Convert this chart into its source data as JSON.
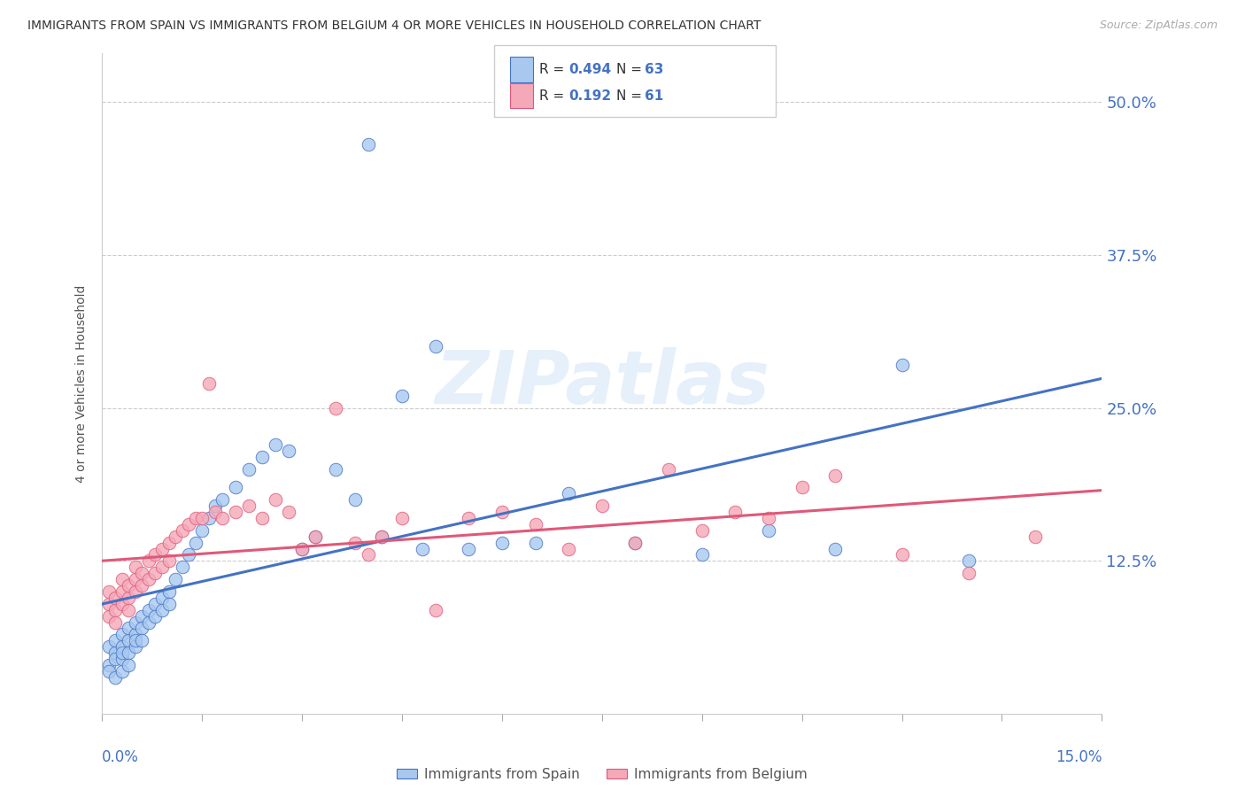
{
  "title": "IMMIGRANTS FROM SPAIN VS IMMIGRANTS FROM BELGIUM 4 OR MORE VEHICLES IN HOUSEHOLD CORRELATION CHART",
  "source": "Source: ZipAtlas.com",
  "ylabel": "4 or more Vehicles in Household",
  "yticks_labels": [
    "50.0%",
    "37.5%",
    "25.0%",
    "12.5%"
  ],
  "ytick_vals": [
    0.5,
    0.375,
    0.25,
    0.125
  ],
  "xlim": [
    0.0,
    0.15
  ],
  "ylim": [
    0.0,
    0.54
  ],
  "legend_label1": "Immigrants from Spain",
  "legend_label2": "Immigrants from Belgium",
  "R1": "0.494",
  "N1": "63",
  "R2": "0.192",
  "N2": "61",
  "color_spain": "#a8c8f0",
  "color_belgium": "#f4a8b8",
  "line_color_spain": "#4472c4",
  "line_color_belgium": "#e05878",
  "background_color": "#ffffff",
  "watermark_text": "ZIPatlas",
  "spain_x": [
    0.001,
    0.001,
    0.001,
    0.002,
    0.002,
    0.002,
    0.002,
    0.003,
    0.003,
    0.003,
    0.003,
    0.003,
    0.004,
    0.004,
    0.004,
    0.004,
    0.005,
    0.005,
    0.005,
    0.005,
    0.006,
    0.006,
    0.006,
    0.007,
    0.007,
    0.008,
    0.008,
    0.009,
    0.009,
    0.01,
    0.01,
    0.011,
    0.012,
    0.013,
    0.014,
    0.015,
    0.016,
    0.017,
    0.018,
    0.02,
    0.022,
    0.024,
    0.026,
    0.028,
    0.03,
    0.032,
    0.035,
    0.038,
    0.04,
    0.042,
    0.045,
    0.048,
    0.05,
    0.055,
    0.06,
    0.065,
    0.07,
    0.08,
    0.09,
    0.1,
    0.11,
    0.12,
    0.13
  ],
  "spain_y": [
    0.04,
    0.055,
    0.035,
    0.05,
    0.06,
    0.045,
    0.03,
    0.065,
    0.055,
    0.045,
    0.035,
    0.05,
    0.06,
    0.07,
    0.05,
    0.04,
    0.065,
    0.055,
    0.075,
    0.06,
    0.08,
    0.07,
    0.06,
    0.085,
    0.075,
    0.09,
    0.08,
    0.095,
    0.085,
    0.1,
    0.09,
    0.11,
    0.12,
    0.13,
    0.14,
    0.15,
    0.16,
    0.17,
    0.175,
    0.185,
    0.2,
    0.21,
    0.22,
    0.215,
    0.135,
    0.145,
    0.2,
    0.175,
    0.465,
    0.145,
    0.26,
    0.135,
    0.3,
    0.135,
    0.14,
    0.14,
    0.18,
    0.14,
    0.13,
    0.15,
    0.135,
    0.285,
    0.125
  ],
  "belgium_x": [
    0.001,
    0.001,
    0.001,
    0.002,
    0.002,
    0.002,
    0.003,
    0.003,
    0.003,
    0.004,
    0.004,
    0.004,
    0.005,
    0.005,
    0.005,
    0.006,
    0.006,
    0.007,
    0.007,
    0.008,
    0.008,
    0.009,
    0.009,
    0.01,
    0.01,
    0.011,
    0.012,
    0.013,
    0.014,
    0.015,
    0.016,
    0.017,
    0.018,
    0.02,
    0.022,
    0.024,
    0.026,
    0.028,
    0.03,
    0.032,
    0.035,
    0.038,
    0.04,
    0.042,
    0.045,
    0.05,
    0.055,
    0.06,
    0.065,
    0.07,
    0.075,
    0.08,
    0.085,
    0.09,
    0.095,
    0.1,
    0.105,
    0.11,
    0.12,
    0.13,
    0.14
  ],
  "belgium_y": [
    0.09,
    0.08,
    0.1,
    0.085,
    0.095,
    0.075,
    0.09,
    0.1,
    0.11,
    0.095,
    0.105,
    0.085,
    0.1,
    0.11,
    0.12,
    0.105,
    0.115,
    0.11,
    0.125,
    0.115,
    0.13,
    0.12,
    0.135,
    0.125,
    0.14,
    0.145,
    0.15,
    0.155,
    0.16,
    0.16,
    0.27,
    0.165,
    0.16,
    0.165,
    0.17,
    0.16,
    0.175,
    0.165,
    0.135,
    0.145,
    0.25,
    0.14,
    0.13,
    0.145,
    0.16,
    0.085,
    0.16,
    0.165,
    0.155,
    0.135,
    0.17,
    0.14,
    0.2,
    0.15,
    0.165,
    0.16,
    0.185,
    0.195,
    0.13,
    0.115,
    0.145
  ]
}
